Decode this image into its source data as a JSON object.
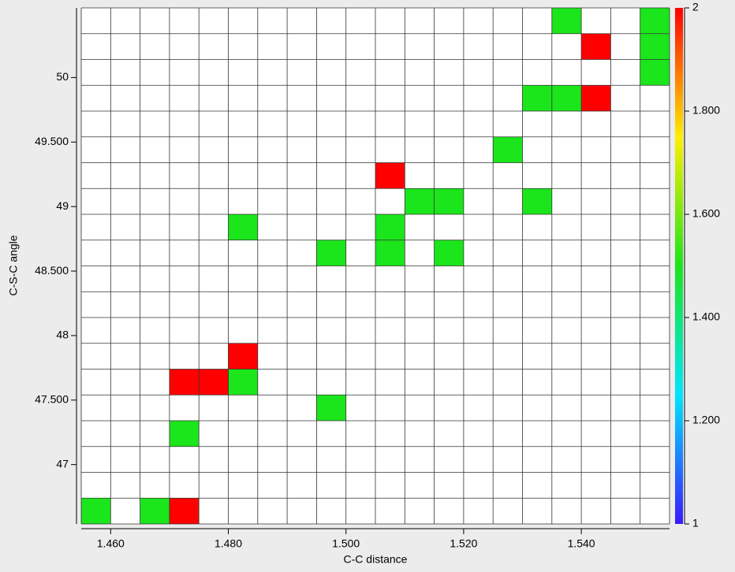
{
  "chart_data": {
    "type": "heatmap",
    "xlabel": "C-C distance",
    "ylabel": "C-S-C angle",
    "xlim": [
      1.455,
      1.555
    ],
    "ylim": [
      46.54,
      50.54
    ],
    "xticks": [
      {
        "value": 1.46,
        "label": "1.460"
      },
      {
        "value": 1.48,
        "label": "1.480"
      },
      {
        "value": 1.5,
        "label": "1.500"
      },
      {
        "value": 1.52,
        "label": "1.520"
      },
      {
        "value": 1.54,
        "label": "1.540"
      }
    ],
    "yticks": [
      47,
      {
        "value": 47.5,
        "label": "47.500"
      },
      48,
      {
        "value": 48.5,
        "label": "48.500"
      },
      49,
      {
        "value": 49.5,
        "label": "49.500"
      },
      50
    ],
    "x_edges": [
      1.455,
      1.46,
      1.465,
      1.47,
      1.475,
      1.48,
      1.485,
      1.49,
      1.495,
      1.5,
      1.505,
      1.51,
      1.515,
      1.52,
      1.525,
      1.53,
      1.535,
      1.54,
      1.545,
      1.55,
      1.555
    ],
    "y_edges": [
      46.54,
      46.74,
      46.94,
      47.14,
      47.34,
      47.54,
      47.74,
      47.94,
      48.14,
      48.34,
      48.54,
      48.74,
      48.94,
      49.14,
      49.34,
      49.54,
      49.74,
      49.94,
      50.14,
      50.34,
      50.54
    ],
    "cells": [
      {
        "x": [
          1.455,
          1.46
        ],
        "y": [
          46.54,
          46.74
        ],
        "value": 1.5
      },
      {
        "x": [
          1.465,
          1.47
        ],
        "y": [
          46.54,
          46.74
        ],
        "value": 1.5
      },
      {
        "x": [
          1.47,
          1.475
        ],
        "y": [
          46.54,
          46.74
        ],
        "value": 2
      },
      {
        "x": [
          1.47,
          1.475
        ],
        "y": [
          47.14,
          47.34
        ],
        "value": 1.5
      },
      {
        "x": [
          1.495,
          1.5
        ],
        "y": [
          47.34,
          47.54
        ],
        "value": 1.5
      },
      {
        "x": [
          1.47,
          1.475
        ],
        "y": [
          47.54,
          47.74
        ],
        "value": 2
      },
      {
        "x": [
          1.475,
          1.48
        ],
        "y": [
          47.54,
          47.74
        ],
        "value": 2
      },
      {
        "x": [
          1.48,
          1.485
        ],
        "y": [
          47.54,
          47.74
        ],
        "value": 1.5
      },
      {
        "x": [
          1.48,
          1.485
        ],
        "y": [
          47.74,
          47.94
        ],
        "value": 2
      },
      {
        "x": [
          1.495,
          1.5
        ],
        "y": [
          48.54,
          48.74
        ],
        "value": 1.5
      },
      {
        "x": [
          1.505,
          1.51
        ],
        "y": [
          48.54,
          48.74
        ],
        "value": 1.5
      },
      {
        "x": [
          1.515,
          1.52
        ],
        "y": [
          48.54,
          48.74
        ],
        "value": 1.5
      },
      {
        "x": [
          1.48,
          1.485
        ],
        "y": [
          48.74,
          48.94
        ],
        "value": 1.5
      },
      {
        "x": [
          1.505,
          1.51
        ],
        "y": [
          48.74,
          48.94
        ],
        "value": 1.5
      },
      {
        "x": [
          1.51,
          1.515
        ],
        "y": [
          48.94,
          49.14
        ],
        "value": 1.5
      },
      {
        "x": [
          1.515,
          1.52
        ],
        "y": [
          48.94,
          49.14
        ],
        "value": 1.5
      },
      {
        "x": [
          1.53,
          1.535
        ],
        "y": [
          48.94,
          49.14
        ],
        "value": 1.5
      },
      {
        "x": [
          1.505,
          1.51
        ],
        "y": [
          49.14,
          49.34
        ],
        "value": 2
      },
      {
        "x": [
          1.525,
          1.53
        ],
        "y": [
          49.34,
          49.54
        ],
        "value": 1.5
      },
      {
        "x": [
          1.53,
          1.535
        ],
        "y": [
          49.74,
          49.94
        ],
        "value": 1.5
      },
      {
        "x": [
          1.535,
          1.54
        ],
        "y": [
          49.74,
          49.94
        ],
        "value": 1.5
      },
      {
        "x": [
          1.54,
          1.545
        ],
        "y": [
          49.74,
          49.94
        ],
        "value": 2
      },
      {
        "x": [
          1.55,
          1.555
        ],
        "y": [
          49.94,
          50.14
        ],
        "value": 1.5
      },
      {
        "x": [
          1.54,
          1.545
        ],
        "y": [
          50.14,
          50.34
        ],
        "value": 2
      },
      {
        "x": [
          1.55,
          1.555
        ],
        "y": [
          50.14,
          50.34
        ],
        "value": 1.5
      },
      {
        "x": [
          1.535,
          1.54
        ],
        "y": [
          50.34,
          50.54
        ],
        "value": 1.5
      },
      {
        "x": [
          1.55,
          1.555
        ],
        "y": [
          50.34,
          50.54
        ],
        "value": 1.5
      }
    ],
    "colorbar": {
      "lim": [
        1,
        2
      ],
      "ticks": [
        1,
        {
          "value": 1.2,
          "label": "1.200"
        },
        {
          "value": 1.4,
          "label": "1.400"
        },
        {
          "value": 1.6,
          "label": "1.600"
        },
        {
          "value": 1.8,
          "label": "1.800"
        },
        2
      ]
    },
    "colormap": [
      {
        "value": 1,
        "color": "#3a1aff"
      },
      {
        "value": 1.25,
        "color": "#00e5ff"
      },
      {
        "value": 1.5,
        "color": "#1be51b"
      },
      {
        "value": 1.75,
        "color": "#ffee00"
      },
      {
        "value": 2,
        "color": "#ff0000"
      }
    ]
  }
}
